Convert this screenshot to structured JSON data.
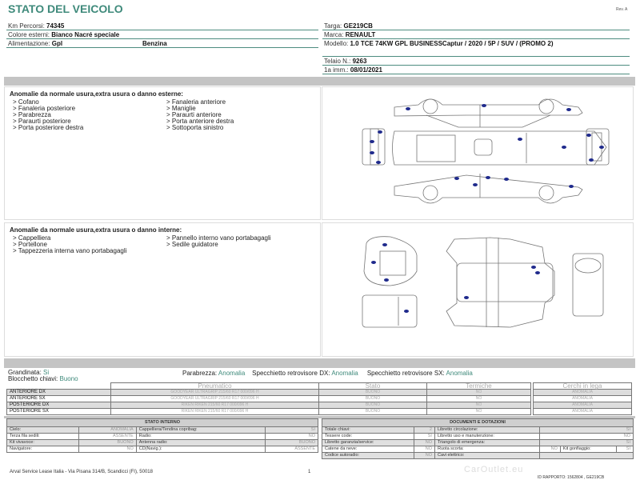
{
  "header": {
    "title": "STATO DEL VEICOLO",
    "rev": "Rev. A"
  },
  "vehicle_left": [
    {
      "label": "Km Percorsi:",
      "value": "74345"
    },
    {
      "label": "Colore esterni:",
      "value": "Bianco Nacré speciale"
    },
    {
      "label": "Alimentazione:",
      "value": "Gpl",
      "extra": "Benzina"
    }
  ],
  "vehicle_right": [
    {
      "label": "Targa:",
      "value": "GE219CB"
    },
    {
      "label": "Marca:",
      "value": "RENAULT"
    },
    {
      "label": "Modello:",
      "value": "1.0 TCE 74KW GPL BUSINESSCaptur / 2020 / 5P / SUV / (PROMO 2)"
    },
    {
      "label": "Telaio N.:",
      "value": "9263"
    },
    {
      "label": "1a imm.:",
      "value": "08/01/2021"
    }
  ],
  "external": {
    "title": "Anomalie da normale usura,extra usura o danno esterne:",
    "col1": [
      "> Cofano",
      "> Fanaleria posteriore",
      "> Parabrezza",
      "> Paraurti posteriore",
      "> Porta posteriore destra"
    ],
    "col2": [
      "> Fanaleria anteriore",
      "> Maniglie",
      "> Paraurti anteriore",
      "> Porta anteriore destra",
      "> Sottoporta sinistro"
    ]
  },
  "internal": {
    "title": "Anomalie da normale usura,extra usura o danno interne:",
    "col1": [
      "> Cappelliera",
      "> Portellone",
      "> Tappezzeria interna vano portabagagli"
    ],
    "col2": [
      "> Pannello interno vano portabagagli",
      "> Sedile guidatore"
    ]
  },
  "marker_color": "#1f2a8c",
  "checks": {
    "grandinata_label": "Grandinata:",
    "grandinata": "Si",
    "blocchetto_label": "Blocchetto chiavi:",
    "blocchetto": "Buono",
    "parabrezza_label": "Parabrezza:",
    "parabrezza": "Anomalia",
    "spec_dx_label": "Specchietto retrovisore DX:",
    "spec_dx": "Anomalia",
    "spec_sx_label": "Specchietto retrovisore SX:",
    "spec_sx": "Anomalia"
  },
  "tyres": {
    "headers": [
      "Pneumatico",
      "Stato",
      "Termiche"
    ],
    "rims_header": "Cerchi in lega",
    "rows": [
      {
        "pos": "ANTERIORE DX",
        "tyre": "GOODYEAR ULTRAGRIP  215/60 R17 000/096 H",
        "stato": "BUONO",
        "termiche": "NO",
        "cerchi": "ANOMALIA"
      },
      {
        "pos": "ANTERIORE SX",
        "tyre": "GOODYEAR ULTRAGRIP  215/60 R17 000/096 H",
        "stato": "BUONO",
        "termiche": "NO",
        "cerchi": "ANOMALIA"
      },
      {
        "pos": "POSTERIORE DX",
        "tyre": "RIKEN RIKEN 215/60 R17 000/096 H",
        "stato": "BUONO",
        "termiche": "NO",
        "cerchi": "ANOMALIA"
      },
      {
        "pos": "POSTERIORE SX",
        "tyre": "RIKEN RIKEN 215/60 R17 000/096 H",
        "stato": "BUONO",
        "termiche": "NO",
        "cerchi": "ANOMALIA"
      }
    ]
  },
  "interior": {
    "title": "STATO INTERNO",
    "rows": [
      [
        "Cielo:",
        "ANOMALIA",
        "Cappelliera/Tendina copribag:",
        "SI"
      ],
      [
        "Terza fila sedili:",
        "ASSENTE",
        "Radio:",
        "NO"
      ],
      [
        "Kit vivavoce:",
        "BUONO",
        "Antenna radio:",
        "BUONO"
      ],
      [
        "Navigatore:",
        "NO",
        "CD(Navig.):",
        "ASSENTE"
      ]
    ]
  },
  "documents": {
    "title": "DOCUMENTI E DOTAZIONI",
    "rows": [
      [
        "Totale chiavi:",
        "2",
        "Libretto circolazione:",
        "SI"
      ],
      [
        "Tessere code:",
        "SI",
        "Libretto uso e manutenzione:",
        "NO"
      ],
      [
        "Libretto garanzia/service:",
        "NO",
        "Triangolo di emergenza:",
        "SI"
      ],
      [
        "Catene da neve:",
        "NO",
        "Ruota scorta:",
        "NO",
        "Kit gonfiaggio:",
        "SI"
      ],
      [
        "Codice autoradio:",
        "NO",
        "Cavi elettrico:",
        ""
      ]
    ]
  },
  "footer": {
    "address": "Arval Service Lease Italia - Via Pisana 314/B, Scandicci (FI), 50018",
    "page": "1",
    "id": "ID RAPPORTO: 1562804 , GE219CB",
    "watermark": "CarOutlet.eu"
  }
}
